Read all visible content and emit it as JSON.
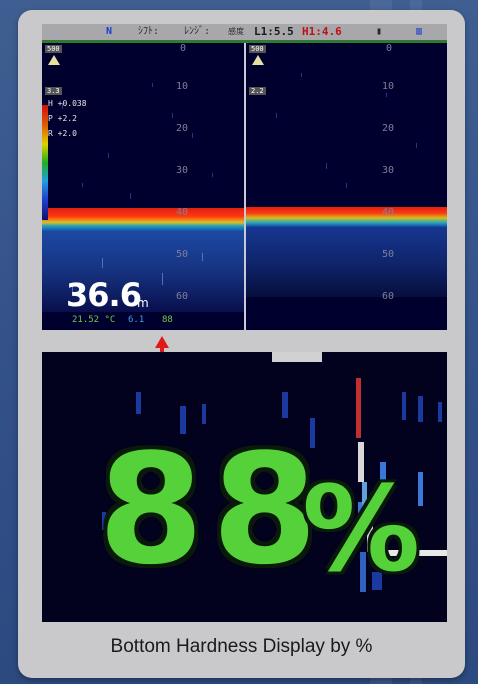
{
  "status_bar": {
    "heading_mode": "N",
    "shift_label": "ｼﾌﾄ:",
    "range_label": "ﾚﾝｼﾞ:",
    "gain_label": "感度",
    "low_freq": "L1:5.5",
    "high_freq": "H1:4.6"
  },
  "left_pane": {
    "range_value": "500",
    "sub_value": "3.3",
    "scale_rows": [
      "H +0.038",
      "P +2.2",
      "R +2.0"
    ],
    "depth_ticks": [
      "0",
      "10",
      "20",
      "30",
      "40",
      "50",
      "60"
    ]
  },
  "right_pane": {
    "range_value": "500",
    "sub_value": "2.2",
    "depth_ticks": [
      "0",
      "10",
      "20",
      "30",
      "40",
      "50",
      "60"
    ]
  },
  "readout": {
    "depth": "36.6",
    "depth_unit": "m",
    "water_temp": "21.52 °C",
    "speed": "6.1",
    "hardness_small": "88"
  },
  "zoom": {
    "hardness_value": "88",
    "hardness_unit": "%"
  },
  "caption": "Bottom Hardness Display by %",
  "colors": {
    "accent_red": "#e01818",
    "hardness_green": "#55d13a",
    "card_bg": "#c9c9cb"
  }
}
